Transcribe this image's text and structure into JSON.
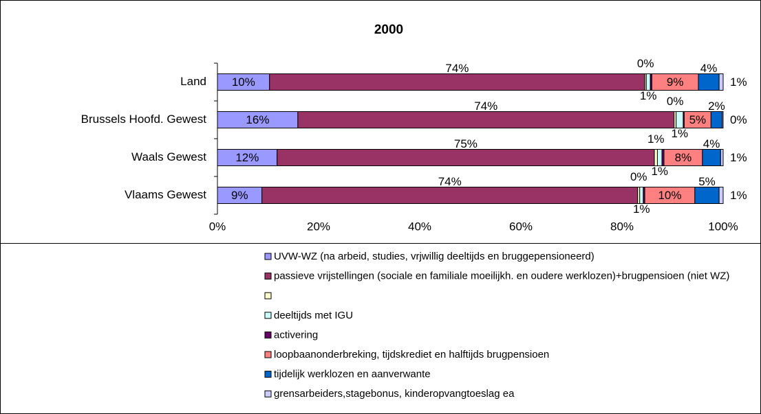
{
  "chart_data": {
    "type": "bar",
    "orientation": "horizontal",
    "stacked": true,
    "title": "2000",
    "categories": [
      "Land",
      "Brussels Hoofd. Gewest",
      "Waals Gewest",
      "Vlaams Gewest"
    ],
    "xlim": [
      0,
      100
    ],
    "xticks": [
      {
        "value": 0,
        "label": "0%"
      },
      {
        "value": 20,
        "label": "20%"
      },
      {
        "value": 40,
        "label": "40%"
      },
      {
        "value": 60,
        "label": "60%"
      },
      {
        "value": 80,
        "label": "80%"
      },
      {
        "value": 100,
        "label": "100%"
      }
    ],
    "series": [
      {
        "name": "UVW-WZ (na arbeid, studies, vrjwillig deeltijds en bruggepensioneerd)",
        "color": "#9999ff",
        "values": [
          10.3,
          15.9,
          11.8,
          8.8
        ],
        "value_labels": [
          "10%",
          "16%",
          "12%",
          "9%"
        ]
      },
      {
        "name": "passieve vrijstellingen (sociale en familiale moeilijkh. en oudere werklozen)+brugpensioen (niet WZ)",
        "color": "#993366",
        "values": [
          74.2,
          74.4,
          74.6,
          74.3
        ],
        "value_labels": [
          "74%",
          "74%",
          "75%",
          "74%"
        ]
      },
      {
        "color": "#ffffcc",
        "values": [
          0.3,
          0.4,
          0.6,
          0.4
        ],
        "value_labels": [
          "0%",
          "0%",
          "1%",
          "0%"
        ]
      },
      {
        "name": "deeltijds met IGU",
        "color": "#ccffff",
        "values": [
          0.8,
          1.4,
          0.9,
          0.7
        ],
        "value_labels": [
          "1%",
          "1%",
          "1%",
          "1%"
        ]
      },
      {
        "name": "activering",
        "color": "#660066",
        "values": [
          0.3,
          0.2,
          0.4,
          0.3
        ]
      },
      {
        "name": "loopbaanonderbreking, tijdskrediet en halftijds brugpensioen",
        "color": "#ff8080",
        "values": [
          9.2,
          5.3,
          7.6,
          9.9
        ],
        "value_labels": [
          "9%",
          "5%",
          "8%",
          "10%"
        ]
      },
      {
        "name": "tijdelijk werklozen en aanverwante",
        "color": "#0066cc",
        "values": [
          4.1,
          2.2,
          3.6,
          4.8
        ],
        "value_labels": [
          "4%",
          "2%",
          "4%",
          "5%"
        ]
      },
      {
        "name": "grensarbeiders,stagebonus, kinderopvangtoeslag ea",
        "color": "#ccccff",
        "values": [
          0.8,
          0.2,
          0.5,
          0.8
        ],
        "value_labels": [
          "1%",
          "0%",
          "1%",
          "1%"
        ]
      }
    ]
  }
}
